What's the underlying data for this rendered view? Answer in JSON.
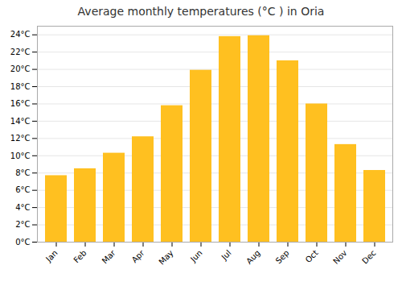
{
  "chart_data": {
    "type": "bar",
    "title": "Average monthly temperatures (°C ) in Oria",
    "categories": [
      "Jan",
      "Feb",
      "Mar",
      "Apr",
      "May",
      "Jun",
      "Jul",
      "Aug",
      "Sep",
      "Oct",
      "Nov",
      "Dec"
    ],
    "values": [
      7.7,
      8.5,
      10.3,
      12.2,
      15.8,
      19.9,
      23.8,
      23.9,
      21.0,
      16.0,
      11.3,
      8.3
    ],
    "color": "#FFC020",
    "ylim": [
      0,
      25
    ],
    "yticks": [
      {
        "value": 0,
        "label": "0°C"
      },
      {
        "value": 2,
        "label": "2°C"
      },
      {
        "value": 4,
        "label": "4°C"
      },
      {
        "value": 6,
        "label": "6°C"
      },
      {
        "value": 8,
        "label": "8°C"
      },
      {
        "value": 10,
        "label": "10°C"
      },
      {
        "value": 12,
        "label": "12°C"
      },
      {
        "value": 14,
        "label": "14°C"
      },
      {
        "value": 16,
        "label": "16°C"
      },
      {
        "value": 18,
        "label": "18°C"
      },
      {
        "value": 20,
        "label": "20°C"
      },
      {
        "value": 22,
        "label": "22°C"
      },
      {
        "value": 24,
        "label": "24°C"
      }
    ],
    "grid": true
  }
}
